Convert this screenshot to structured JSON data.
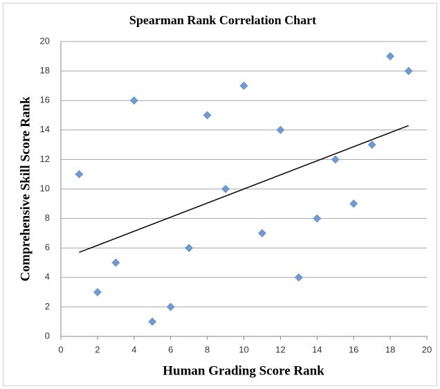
{
  "chart_data": {
    "type": "scatter",
    "title": "Spearman Rank Correlation Chart",
    "xlabel": "Human Grading Score Rank",
    "ylabel": "Comprehensive Skill Score Rank",
    "x": [
      1,
      2,
      3,
      4,
      5,
      6,
      7,
      8,
      9,
      10,
      11,
      12,
      13,
      14,
      15,
      16,
      17,
      18,
      19
    ],
    "values": [
      11,
      3,
      5,
      16,
      1,
      2,
      6,
      15,
      10,
      17,
      7,
      14,
      4,
      8,
      12,
      9,
      13,
      19,
      18
    ],
    "color": "#6f9bd1",
    "trendline": {
      "x": [
        1,
        19
      ],
      "y": [
        5.7,
        14.3
      ],
      "color": "#000000"
    },
    "xlim": [
      0,
      20
    ],
    "xticks": [
      0,
      2,
      4,
      6,
      8,
      10,
      12,
      14,
      16,
      18,
      20
    ],
    "ylim": [
      0,
      20
    ],
    "yticks": [
      0,
      2,
      4,
      6,
      8,
      10,
      12,
      14,
      16,
      18,
      20
    ],
    "grid": true
  }
}
